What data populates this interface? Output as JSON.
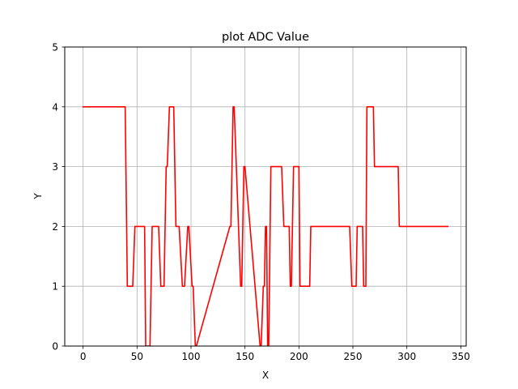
{
  "chart_data": {
    "type": "line",
    "title": "plot ADC Value",
    "xlabel": "X",
    "ylabel": "Y",
    "xlim": [
      -17,
      355
    ],
    "ylim": [
      0,
      5
    ],
    "xticks": [
      0,
      50,
      100,
      150,
      200,
      250,
      300,
      350
    ],
    "yticks": [
      0,
      1,
      2,
      3,
      4,
      5
    ],
    "grid": true,
    "legend": "none",
    "series": [
      {
        "color": "#ff0000",
        "x": [
          0,
          39,
          41,
          46,
          48,
          57,
          58,
          62,
          64,
          70,
          72,
          75,
          77,
          78,
          80,
          84,
          86,
          89,
          92,
          94,
          97,
          98,
          101,
          102,
          104,
          105,
          136,
          137,
          139,
          140,
          146,
          147,
          149,
          150,
          164,
          165,
          167,
          168,
          169,
          170,
          171,
          172,
          174,
          184,
          186,
          191,
          192,
          193,
          195,
          200,
          201,
          210,
          211,
          247,
          249,
          253,
          254,
          259,
          260,
          262,
          263,
          269,
          270,
          292,
          293,
          338
        ],
        "y": [
          4,
          4,
          1,
          1,
          2,
          2,
          0,
          0,
          2,
          2,
          1,
          1,
          3,
          3,
          4,
          4,
          2,
          2,
          1,
          1,
          2,
          2,
          1,
          1,
          0,
          0,
          2,
          2,
          4,
          4,
          1,
          1,
          3,
          3,
          0,
          0,
          1,
          1,
          2,
          2,
          0,
          0,
          3,
          3,
          2,
          2,
          1,
          1,
          3,
          3,
          1,
          1,
          2,
          2,
          1,
          1,
          2,
          2,
          1,
          1,
          4,
          4,
          3,
          3,
          2,
          2
        ]
      }
    ]
  }
}
